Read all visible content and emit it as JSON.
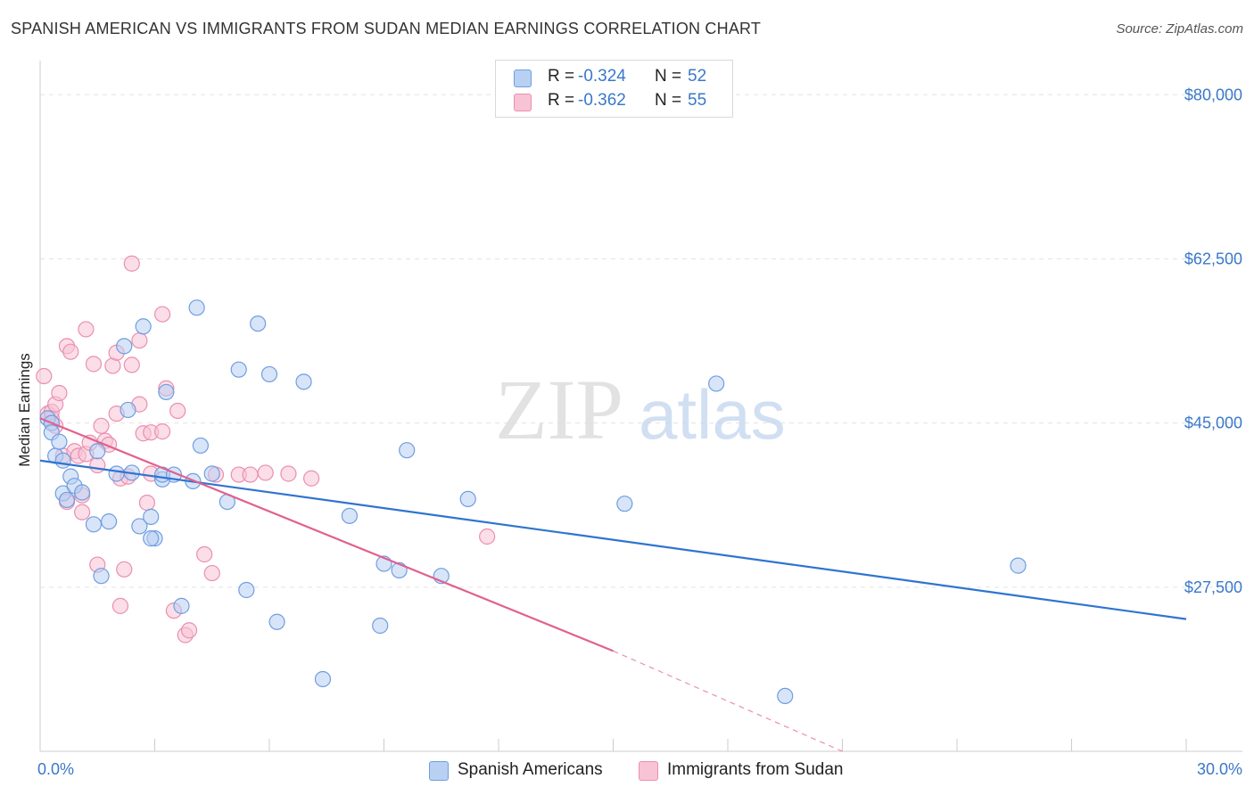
{
  "title": "SPANISH AMERICAN VS IMMIGRANTS FROM SUDAN MEDIAN EARNINGS CORRELATION CHART",
  "source": "Source: ZipAtlas.com",
  "watermark": {
    "zip": "ZIP",
    "atlas": "atlas"
  },
  "legend": {
    "r_label": "R =",
    "n_label": "N =",
    "rows": [
      {
        "r": "-0.324",
        "n": "52"
      },
      {
        "r": "-0.362",
        "n": "55"
      }
    ]
  },
  "colors": {
    "blue_fill": "#b8d0f2",
    "blue_stroke": "#6f9ee0",
    "blue_line": "#2f74d0",
    "pink_fill": "#f8c3d5",
    "pink_stroke": "#ea8fb0",
    "pink_line": "#e2608f",
    "tick_text": "#3a78c9",
    "grid": "#e3e3e3"
  },
  "chart_data": {
    "type": "scatter",
    "title": "SPANISH AMERICAN VS IMMIGRANTS FROM SUDAN MEDIAN EARNINGS CORRELATION CHART",
    "xlabel": "",
    "ylabel": "Median Earnings",
    "xlim": [
      0,
      30
    ],
    "ylim": [
      10000,
      82500
    ],
    "x_tick_labels": [
      "0.0%",
      "30.0%"
    ],
    "y_ticks": [
      27500,
      45000,
      62500,
      80000
    ],
    "y_tick_labels": [
      "$27,500",
      "$45,000",
      "$62,500",
      "$80,000"
    ],
    "grid": true,
    "legend_position": "top-center",
    "series": [
      {
        "name": "Spanish Americans",
        "points": [
          [
            0.2,
            45500
          ],
          [
            0.3,
            45000
          ],
          [
            0.3,
            44000
          ],
          [
            0.4,
            41500
          ],
          [
            0.5,
            43000
          ],
          [
            0.6,
            41000
          ],
          [
            0.6,
            37500
          ],
          [
            0.7,
            36800
          ],
          [
            0.8,
            39300
          ],
          [
            0.9,
            38300
          ],
          [
            1.1,
            37600
          ],
          [
            1.4,
            34200
          ],
          [
            1.5,
            42000
          ],
          [
            1.6,
            28700
          ],
          [
            1.8,
            34500
          ],
          [
            2.0,
            39600
          ],
          [
            2.2,
            53200
          ],
          [
            2.3,
            46400
          ],
          [
            2.4,
            39700
          ],
          [
            2.6,
            34000
          ],
          [
            2.7,
            55300
          ],
          [
            2.9,
            35000
          ],
          [
            3.0,
            32700
          ],
          [
            3.2,
            39000
          ],
          [
            3.2,
            39500
          ],
          [
            3.3,
            48300
          ],
          [
            3.5,
            39500
          ],
          [
            3.7,
            25500
          ],
          [
            4.0,
            38800
          ],
          [
            4.1,
            57300
          ],
          [
            4.2,
            42600
          ],
          [
            4.5,
            39600
          ],
          [
            4.9,
            36600
          ],
          [
            5.2,
            50700
          ],
          [
            5.4,
            27200
          ],
          [
            5.7,
            55600
          ],
          [
            6.0,
            50200
          ],
          [
            6.2,
            23800
          ],
          [
            6.9,
            49400
          ],
          [
            7.4,
            17700
          ],
          [
            8.1,
            35100
          ],
          [
            8.9,
            23400
          ],
          [
            9.0,
            30000
          ],
          [
            9.4,
            29300
          ],
          [
            9.6,
            42100
          ],
          [
            10.5,
            28700
          ],
          [
            11.2,
            36900
          ],
          [
            15.3,
            36400
          ],
          [
            17.7,
            49200
          ],
          [
            25.6,
            29800
          ],
          [
            19.5,
            15900
          ],
          [
            2.9,
            32700
          ]
        ],
        "trend_line": [
          [
            0,
            41000
          ],
          [
            30,
            24100
          ]
        ]
      },
      {
        "name": "Immigrants from Sudan",
        "points": [
          [
            0.1,
            50000
          ],
          [
            0.2,
            46000
          ],
          [
            0.3,
            45500
          ],
          [
            0.3,
            46200
          ],
          [
            0.4,
            44700
          ],
          [
            0.4,
            47000
          ],
          [
            0.5,
            48200
          ],
          [
            0.6,
            41500
          ],
          [
            0.7,
            36600
          ],
          [
            0.7,
            53200
          ],
          [
            0.8,
            52600
          ],
          [
            0.9,
            42000
          ],
          [
            1.0,
            41500
          ],
          [
            1.1,
            35500
          ],
          [
            1.1,
            37300
          ],
          [
            1.2,
            41700
          ],
          [
            1.2,
            55000
          ],
          [
            1.3,
            42900
          ],
          [
            1.4,
            51300
          ],
          [
            1.5,
            40500
          ],
          [
            1.5,
            29900
          ],
          [
            1.6,
            44700
          ],
          [
            1.7,
            43100
          ],
          [
            1.8,
            42700
          ],
          [
            1.9,
            51100
          ],
          [
            2.0,
            46000
          ],
          [
            2.0,
            52500
          ],
          [
            2.1,
            39100
          ],
          [
            2.1,
            25500
          ],
          [
            2.2,
            29400
          ],
          [
            2.3,
            39300
          ],
          [
            2.4,
            51200
          ],
          [
            2.4,
            62000
          ],
          [
            2.6,
            53800
          ],
          [
            2.6,
            47000
          ],
          [
            2.7,
            43900
          ],
          [
            2.8,
            36500
          ],
          [
            2.9,
            44000
          ],
          [
            3.2,
            56600
          ],
          [
            3.2,
            44100
          ],
          [
            3.3,
            48700
          ],
          [
            3.5,
            25000
          ],
          [
            3.6,
            46300
          ],
          [
            3.8,
            22400
          ],
          [
            3.9,
            22900
          ],
          [
            4.3,
            31000
          ],
          [
            4.5,
            29000
          ],
          [
            4.6,
            39500
          ],
          [
            5.2,
            39500
          ],
          [
            5.5,
            39500
          ],
          [
            5.9,
            39700
          ],
          [
            6.5,
            39600
          ],
          [
            7.1,
            39100
          ],
          [
            11.7,
            32900
          ],
          [
            2.9,
            39600
          ]
        ],
        "trend_line": [
          [
            0,
            45500
          ],
          [
            15,
            20700
          ]
        ],
        "trend_extension": [
          [
            15,
            20700
          ],
          [
            21,
            10000
          ]
        ]
      }
    ]
  }
}
